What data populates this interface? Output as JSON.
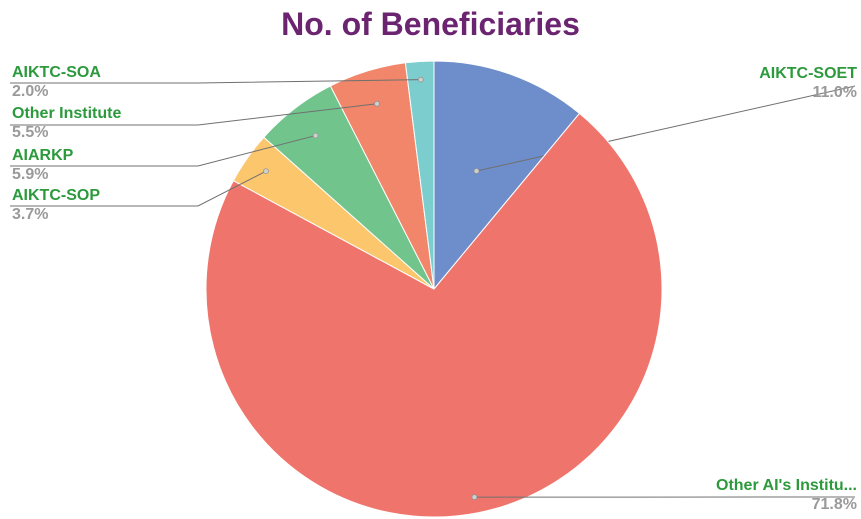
{
  "chart_data": {
    "type": "pie",
    "title": "No. of Beneficiaries",
    "start_angle_deg": 0,
    "direction": "clockwise",
    "slices": [
      {
        "label": "AIKTC-SOET",
        "percent_text": "11.0%",
        "value": 11.0,
        "color": "#6d8ecb"
      },
      {
        "label": "Other AI's Institu...",
        "percent_text": "71.8%",
        "value": 71.8,
        "color": "#ef756c"
      },
      {
        "label": "AIKTC-SOP",
        "percent_text": "3.7%",
        "value": 3.7,
        "color": "#fbc66c"
      },
      {
        "label": "AIARKP",
        "percent_text": "5.9%",
        "value": 5.9,
        "color": "#72c48d"
      },
      {
        "label": "Other Institute",
        "percent_text": "5.5%",
        "value": 5.5,
        "color": "#f1866a"
      },
      {
        "label": "AIKTC-SOA",
        "percent_text": "2.0%",
        "value": 2.0,
        "color": "#7ccdcd"
      }
    ],
    "legend": "none",
    "data_labels": "outside with leader lines"
  },
  "colors": {
    "title": "#6b2570",
    "label_name": "#2c9a3c",
    "label_percent": "#9a9a9a",
    "leader_line": "#707070"
  }
}
